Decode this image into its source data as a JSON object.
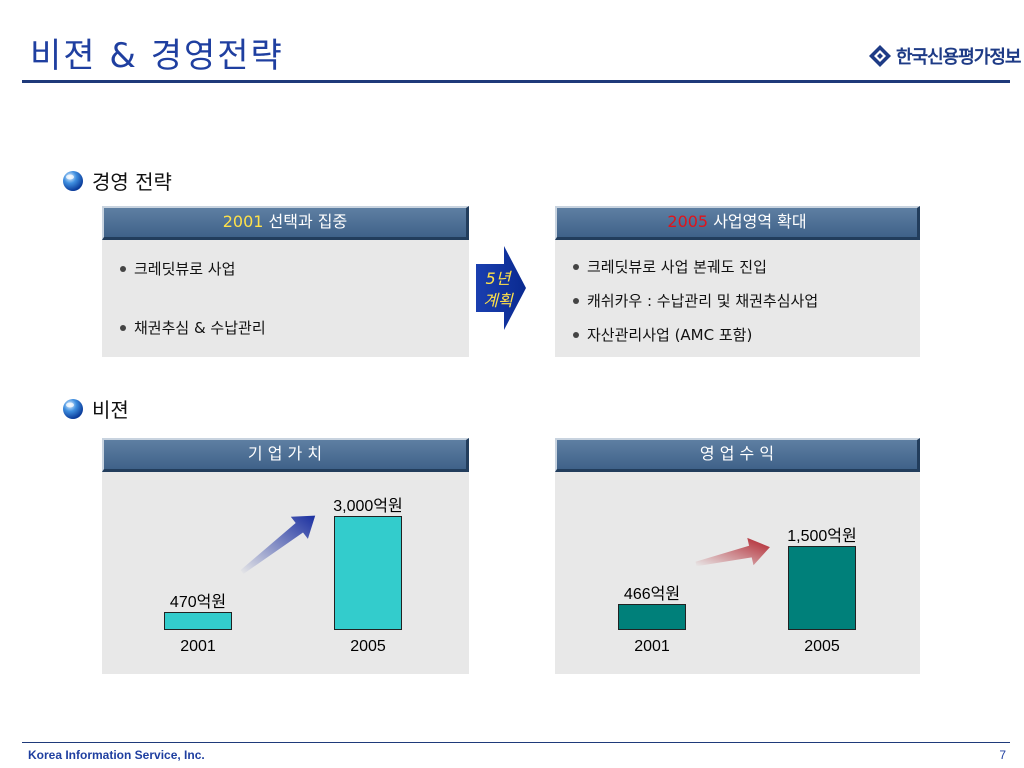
{
  "title": "비젼 & 경영전략",
  "logo_text": "한국신용평가정보",
  "strategy": {
    "heading": "경영 전략",
    "left": {
      "year": "2001",
      "title": " 선택과 집중",
      "items": [
        "크레딧뷰로 사업",
        "채권추심 & 수납관리"
      ]
    },
    "arrow_label_line1": "5년",
    "arrow_label_line2": "계획",
    "right": {
      "year": "2005",
      "title": " 사업영역 확대",
      "items": [
        "크레딧뷰로 사업 본궤도 진입",
        "캐쉬카우 : 수납관리 및 채권추심사업",
        "자산관리사업 (AMC 포함)"
      ]
    }
  },
  "vision": {
    "heading": "비젼",
    "charts": [
      {
        "title": "기 업 가 치",
        "categories": [
          "2001",
          "2005"
        ],
        "values": [
          470,
          3000
        ],
        "labels": [
          "470억원",
          "3,000억원"
        ],
        "color": "#33cccc",
        "arrow_color": "#1a2fa0"
      },
      {
        "title": "영 업 수 익",
        "categories": [
          "2001",
          "2005"
        ],
        "values": [
          466,
          1500
        ],
        "labels": [
          "466억원",
          "1,500억원"
        ],
        "color": "#00807a",
        "arrow_color": "#b0202a"
      }
    ]
  },
  "footer": {
    "company": "Korea Information Service, Inc.",
    "page": "7"
  },
  "chart_data": [
    {
      "type": "bar",
      "title": "기 업 가 치",
      "categories": [
        "2001",
        "2005"
      ],
      "values": [
        470,
        3000
      ],
      "data_labels": [
        "470억원",
        "3,000억원"
      ]
    },
    {
      "type": "bar",
      "title": "영 업 수 익",
      "categories": [
        "2001",
        "2005"
      ],
      "values": [
        466,
        1500
      ],
      "data_labels": [
        "466억원",
        "1,500억원"
      ]
    }
  ]
}
